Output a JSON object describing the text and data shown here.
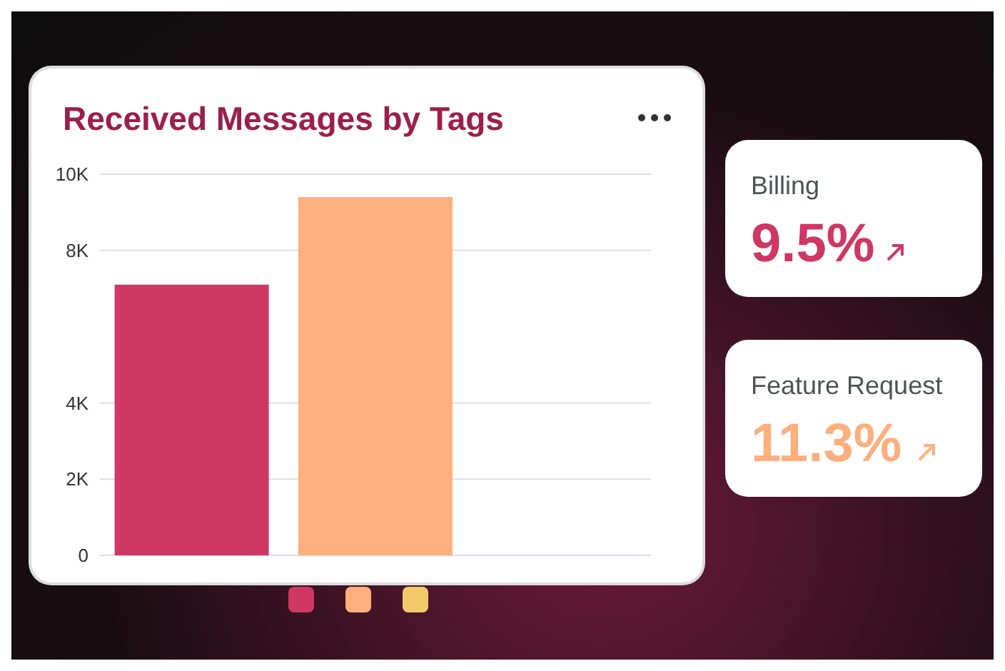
{
  "chart_data": {
    "type": "bar",
    "title": "Received Messages by Tags",
    "categories": [
      null,
      null,
      null
    ],
    "values": [
      7100,
      9400,
      null
    ],
    "colors": [
      "#cf3764",
      "#fdaf7e",
      "#f3ca6a"
    ],
    "ylim": [
      0,
      10000
    ],
    "yticks": [
      0,
      {
        "value": 2000,
        "label": "2K"
      },
      {
        "value": 4000,
        "label": "4K"
      },
      {
        "value": 8000,
        "label": "8K"
      },
      {
        "value": 10000,
        "label": "10K"
      }
    ],
    "grid": "y",
    "annotations": [
      "Billing",
      "9.5%",
      "Feature Request",
      "11.3%"
    ]
  }
}
